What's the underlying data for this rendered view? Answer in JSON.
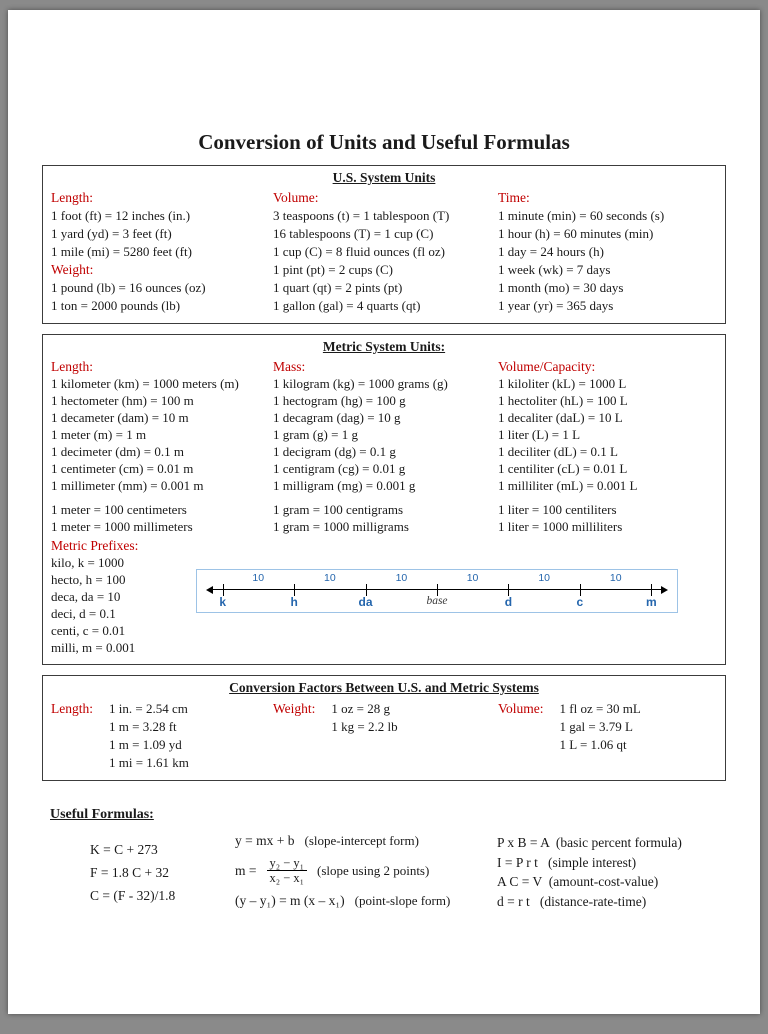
{
  "title": "Conversion of Units and Useful Formulas",
  "colors": {
    "label_red": "#c00000",
    "diagram_blue": "#2566ad",
    "diagram_border": "#9dc3e6"
  },
  "us": {
    "header": "U.S. System Units",
    "length_label": "Length:",
    "length": [
      "1 foot (ft) = 12 inches (in.)",
      "1 yard (yd) = 3 feet (ft)",
      "1 mile (mi) = 5280 feet (ft)"
    ],
    "weight_label": "Weight:",
    "weight": [
      "1 pound (lb) = 16 ounces (oz)",
      "1 ton = 2000 pounds (lb)"
    ],
    "volume_label": "Volume:",
    "volume": [
      "3 teaspoons (t) = 1 tablespoon (T)",
      "16 tablespoons (T) = 1 cup (C)",
      "1 cup (C) = 8 fluid ounces (fl oz)",
      "1 pint (pt) = 2 cups (C)",
      "1 quart (qt) = 2 pints (pt)",
      "1 gallon (gal) = 4 quarts (qt)"
    ],
    "time_label": "Time:",
    "time": [
      "1 minute (min) = 60 seconds (s)",
      "1 hour (h) = 60 minutes (min)",
      "1 day = 24 hours (h)",
      "1 week (wk) = 7 days",
      "1 month (mo) = 30 days",
      "1 year (yr) = 365 days"
    ]
  },
  "metric": {
    "header": "Metric System Units:",
    "length_label": "Length:",
    "length": [
      "1 kilometer (km) = 1000 meters (m)",
      "1 hectometer (hm) = 100 m",
      "1 decameter (dam) = 10 m",
      "1 meter (m) = 1 m",
      "1 decimeter (dm) = 0.1 m",
      "1 centimeter (cm) = 0.01 m",
      "1 millimeter (mm) = 0.001 m"
    ],
    "length_extra": [
      "1 meter = 100 centimeters",
      "1 meter = 1000 millimeters"
    ],
    "mass_label": "Mass:",
    "mass": [
      "1 kilogram (kg) = 1000 grams (g)",
      "1 hectogram (hg) = 100 g",
      "1 decagram (dag) = 10 g",
      "1 gram (g) = 1 g",
      "1 decigram (dg) = 0.1 g",
      "1 centigram (cg) = 0.01 g",
      "1 milligram (mg) = 0.001 g"
    ],
    "mass_extra": [
      "1 gram = 100 centigrams",
      "1 gram = 1000 milligrams"
    ],
    "capacity_label": "Volume/Capacity:",
    "capacity": [
      "1 kiloliter (kL) = 1000 L",
      "1 hectoliter (hL) = 100 L",
      "1 decaliter (daL) = 10 L",
      "1 liter (L) = 1 L",
      "1 deciliter (dL) = 0.1 L",
      "1 centiliter (cL) = 0.01 L",
      "1 milliliter (mL) = 0.001 L"
    ],
    "capacity_extra": [
      "1 liter = 100 centiliters",
      "1 liter = 1000 milliliters"
    ],
    "prefixes_label": "Metric Prefixes:",
    "prefixes": [
      "kilo, k = 1000",
      "hecto, h = 100",
      "deca, da = 10",
      "deci, d = 0.1",
      "centi, c = 0.01",
      "milli, m = 0.001"
    ],
    "diagram": {
      "segment_label": "10",
      "labels": [
        "k",
        "h",
        "da",
        "base",
        "d",
        "c",
        "m"
      ]
    }
  },
  "conversion": {
    "header": "Conversion Factors Between U.S. and Metric Systems",
    "length_label": "Length:",
    "length": [
      "1 in. = 2.54 cm",
      "1 m = 3.28 ft",
      "1 m = 1.09 yd",
      "1 mi = 1.61 km"
    ],
    "weight_label": "Weight:",
    "weight": [
      "1 oz = 28 g",
      "1 kg = 2.2 lb"
    ],
    "volume_label": "Volume:",
    "volume": [
      "1 fl oz = 30 mL",
      "1 gal = 3.79 L",
      "1 L = 1.06 qt"
    ]
  },
  "formulas": {
    "header": "Useful Formulas:",
    "temperature": [
      "K = C + 273",
      "F = 1.8 C + 32",
      "C = (F - 32)/1.8"
    ],
    "slope_intercept": {
      "eq": "y = mx + b",
      "note": "(slope-intercept form)"
    },
    "slope_two_points": {
      "lhs": "m =",
      "num": "y₂ − y₁",
      "den": "x₂ − x₁",
      "note": "(slope using 2 points)"
    },
    "point_slope": {
      "eq": "(y – y₁) = m (x – x₁)",
      "note": "(point-slope form)"
    },
    "business": [
      "P x B = A  (basic percent formula)",
      "I = P r t   (simple interest)",
      "A C = V  (amount-cost-value)",
      "d = r t   (distance-rate-time)"
    ]
  }
}
